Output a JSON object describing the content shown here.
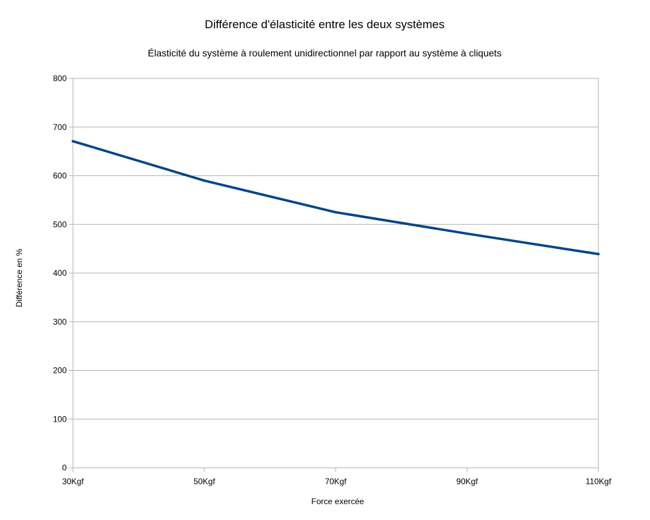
{
  "chart_data": {
    "type": "line",
    "title": "Différence d'élasticité entre les deux systèmes",
    "subtitle": "Élasticité du système à roulement unidirectionnel par rapport au système à cliquets",
    "xlabel": "Force exercée",
    "ylabel": "Différence en %",
    "categories": [
      "30Kgf",
      "50Kgf",
      "70Kgf",
      "90Kgf",
      "110Kgf"
    ],
    "series": [
      {
        "values": [
          671,
          590,
          525,
          481,
          439
        ],
        "color": "#004586"
      }
    ],
    "ylim": [
      0,
      800
    ],
    "yticks": [
      0,
      100,
      200,
      300,
      400,
      500,
      600,
      700,
      800
    ],
    "grid": true,
    "legend": "none"
  }
}
